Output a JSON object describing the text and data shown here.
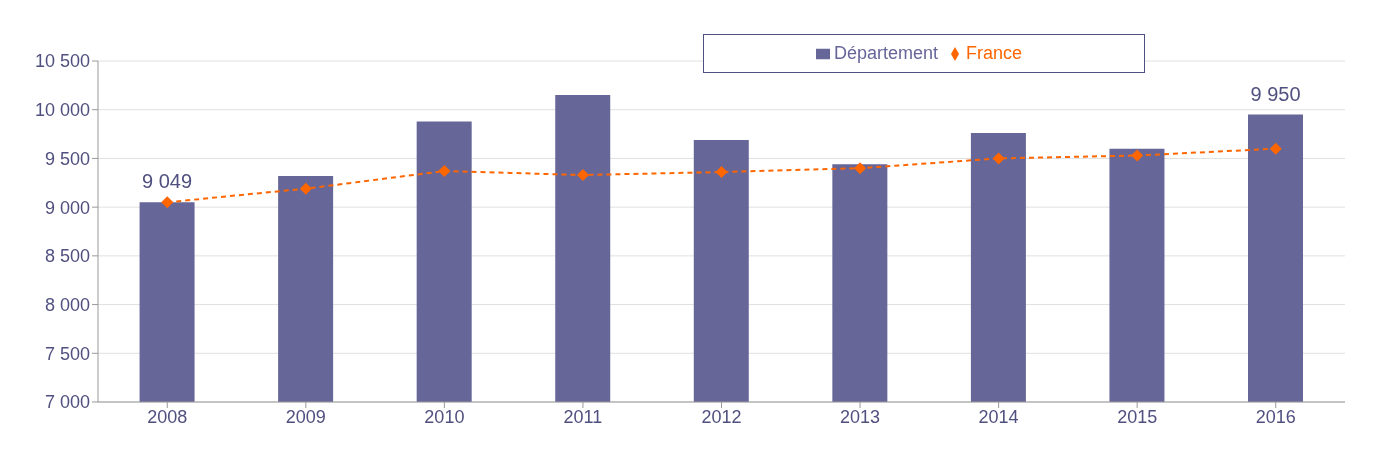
{
  "chart_data": {
    "type": "bar",
    "categories": [
      "2008",
      "2009",
      "2010",
      "2011",
      "2012",
      "2013",
      "2014",
      "2015",
      "2016"
    ],
    "series": [
      {
        "name": "Département",
        "color": "#666699",
        "values": [
          9049,
          9320,
          9880,
          10150,
          9690,
          9440,
          9760,
          9600,
          9950
        ],
        "value_labels": [
          "9 049",
          null,
          null,
          null,
          null,
          null,
          null,
          null,
          "9 950"
        ]
      },
      {
        "name": "France",
        "type": "line",
        "color": "#ff6600",
        "marker": "diamond",
        "line_style": "dashed",
        "values": [
          9050,
          9190,
          9370,
          9330,
          9360,
          9400,
          9500,
          9530,
          9600
        ]
      }
    ],
    "ylim": [
      7000,
      10500
    ],
    "yticks": [
      {
        "value": 7000,
        "label": "7 000"
      },
      {
        "value": 7500,
        "label": "7 500"
      },
      {
        "value": 8000,
        "label": "8 000"
      },
      {
        "value": 8500,
        "label": "8 500"
      },
      {
        "value": 9000,
        "label": "9 000"
      },
      {
        "value": 9500,
        "label": "9 500"
      },
      {
        "value": 10000,
        "label": "10 000"
      },
      {
        "value": 10500,
        "label": "10 500"
      }
    ],
    "grid": "y",
    "legend": "top"
  }
}
